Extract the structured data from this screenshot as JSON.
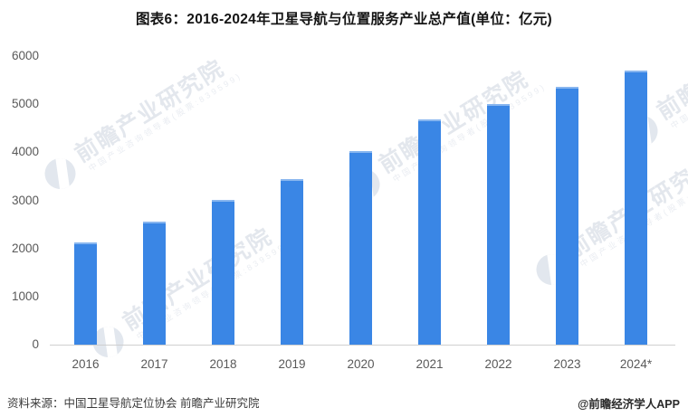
{
  "chart_data": {
    "type": "bar",
    "title": "图表6：2016-2024年卫星导航与位置服务产业总产值(单位：亿元)",
    "categories": [
      "2016",
      "2017",
      "2018",
      "2019",
      "2020",
      "2021",
      "2022",
      "2023",
      "2024*"
    ],
    "values": [
      2118,
      2550,
      3016,
      3450,
      4033,
      4690,
      5007,
      5362,
      5700
    ],
    "ylim": [
      0,
      6000
    ],
    "yticks": [
      0,
      1000,
      2000,
      3000,
      4000,
      5000,
      6000
    ],
    "bar_color": "#3A86E5",
    "grid": false,
    "legend_position": "none"
  },
  "footer": {
    "source": "资料来源：中国卫星导航定位协会 前瞻产业研究院",
    "credit": "@前瞻经济学人APP"
  },
  "watermark": {
    "text": "前瞻产业研究院",
    "subtext": "中国产业咨询领导者(股票:839599)"
  }
}
